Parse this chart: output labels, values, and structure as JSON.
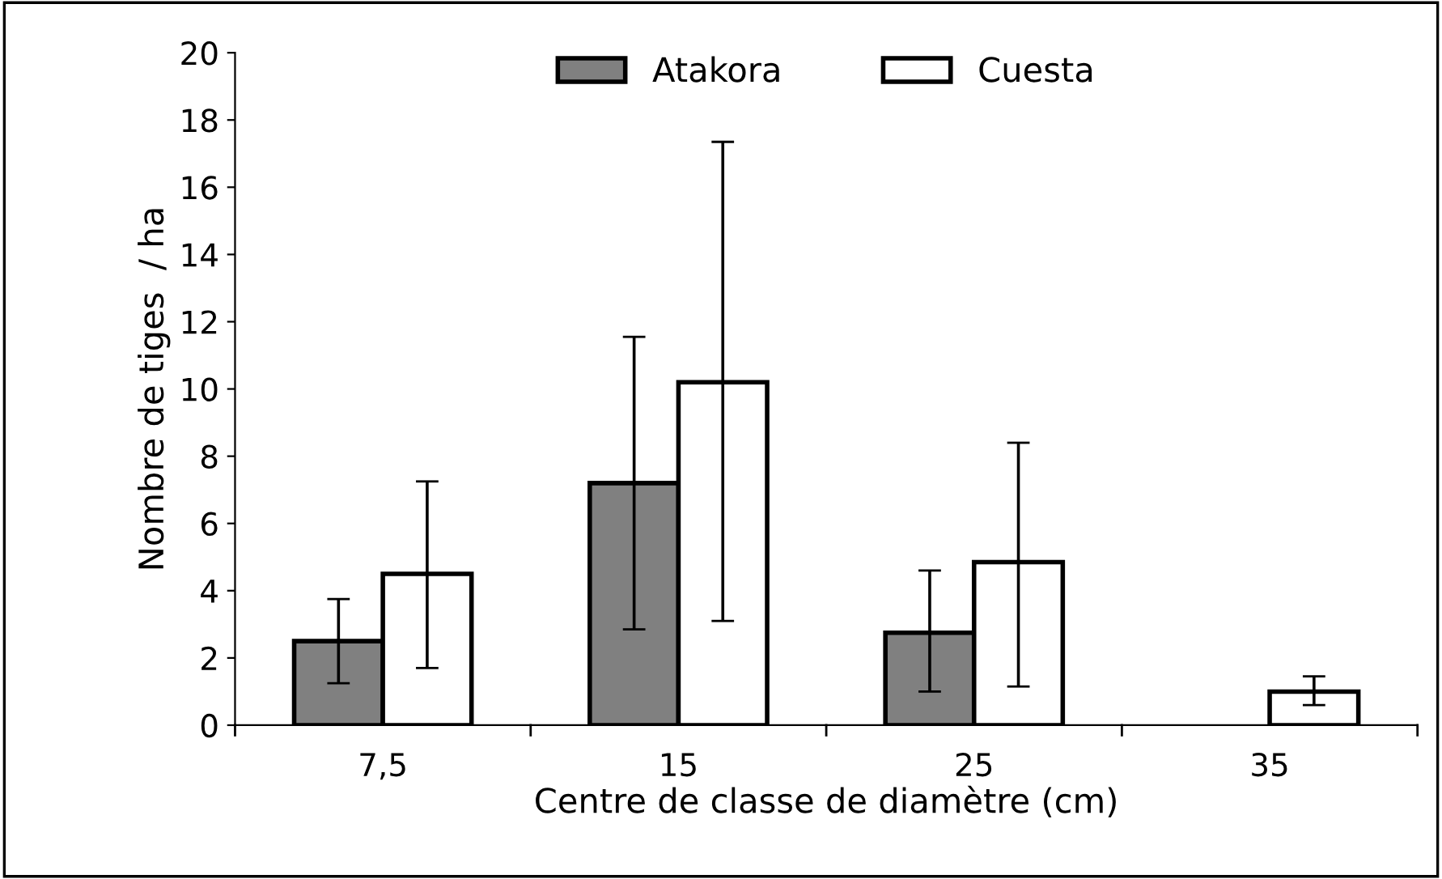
{
  "chart_data": {
    "type": "bar",
    "xlabel": "Centre de classe de diamètre (cm)",
    "ylabel": "Nombre de tiges  / ha",
    "categories": [
      "7,5",
      "15",
      "25",
      "35"
    ],
    "series": [
      {
        "name": "Atakora",
        "color": "#808080",
        "values": [
          2.5,
          7.2,
          2.75,
          null
        ],
        "errors": [
          [
            1.25,
            3.75
          ],
          [
            2.85,
            11.55
          ],
          [
            1.0,
            4.6
          ],
          null
        ]
      },
      {
        "name": "Cuesta",
        "color": "#ffffff",
        "values": [
          4.5,
          10.2,
          4.85,
          1.0
        ],
        "errors": [
          [
            1.7,
            7.25
          ],
          [
            3.1,
            17.35
          ],
          [
            1.15,
            8.4
          ],
          [
            0.6,
            1.45
          ]
        ]
      }
    ],
    "ylim": [
      0,
      20
    ],
    "yticks": [
      0,
      2,
      4,
      6,
      8,
      10,
      12,
      14,
      16,
      18,
      20
    ],
    "grid": false,
    "legend": "top"
  }
}
